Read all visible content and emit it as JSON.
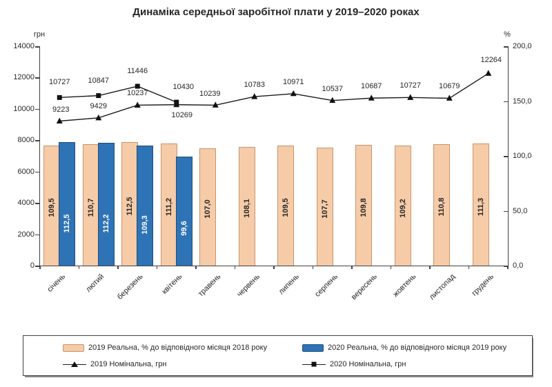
{
  "chart_data": {
    "type": "combo",
    "title": "Динаміка середньої заробітної плати у 2019–2020 роках",
    "categories": [
      "січень",
      "лютий",
      "березень",
      "квітень",
      "травень",
      "червень",
      "липень",
      "серпень",
      "вересень",
      "жовтень",
      "листопад",
      "грудень"
    ],
    "left_axis": {
      "label": "грн",
      "min": 0,
      "max": 14000,
      "step": 2000,
      "tick_labels": [
        "0",
        "2000",
        "4000",
        "6000",
        "8000",
        "10000",
        "12000",
        "14000"
      ]
    },
    "right_axis": {
      "label": "%",
      "min": 0,
      "max": 200,
      "step": 50,
      "tick_labels": [
        "0,0",
        "50,0",
        "100,0",
        "150,0",
        "200,0"
      ]
    },
    "legend_position": "bottom",
    "grid": false,
    "series": [
      {
        "name": "2019 Реальна, % до відповідного місяця 2018 року",
        "type": "bar",
        "axis": "right",
        "fill": "#F6CBA8",
        "border": "#C8946A",
        "label_color": "#262626",
        "values": [
          109.5,
          110.7,
          112.5,
          111.2,
          107.0,
          108.1,
          109.5,
          107.7,
          109.8,
          109.2,
          110.8,
          111.3
        ],
        "labels": [
          "109,5",
          "110,7",
          "112,5",
          "111,2",
          "107,0",
          "108,1",
          "109,5",
          "107,7",
          "109,8",
          "109,2",
          "110,8",
          "111,3"
        ]
      },
      {
        "name": "2020 Реальна, % до відповідного місяця 2019 року",
        "type": "bar",
        "axis": "right",
        "fill": "#2E73B5",
        "border": "#1F4E79",
        "label_color": "#FFFFFF",
        "values": [
          112.5,
          112.2,
          109.3,
          99.6
        ],
        "labels": [
          "112,5",
          "112,2",
          "109,3",
          "99,6"
        ]
      },
      {
        "name": "2019 Номінальна, грн",
        "type": "line",
        "axis": "left",
        "marker": "triangle",
        "color": "#1a1a1a",
        "values": [
          9223,
          9429,
          10237,
          10269,
          10239,
          10783,
          10971,
          10537,
          10687,
          10727,
          10679,
          12264
        ],
        "labels": [
          "9223",
          "9429",
          "10237",
          "10269",
          "10239",
          "10783",
          "10971",
          "10537",
          "10687",
          "10727",
          "10679",
          "12264"
        ]
      },
      {
        "name": "2020 Номінальна, грн",
        "type": "line",
        "axis": "left",
        "marker": "square",
        "color": "#1a1a1a",
        "values": [
          10727,
          10847,
          11446,
          10430
        ],
        "labels": [
          "10727",
          "10847",
          "11446",
          "10430"
        ]
      }
    ]
  }
}
